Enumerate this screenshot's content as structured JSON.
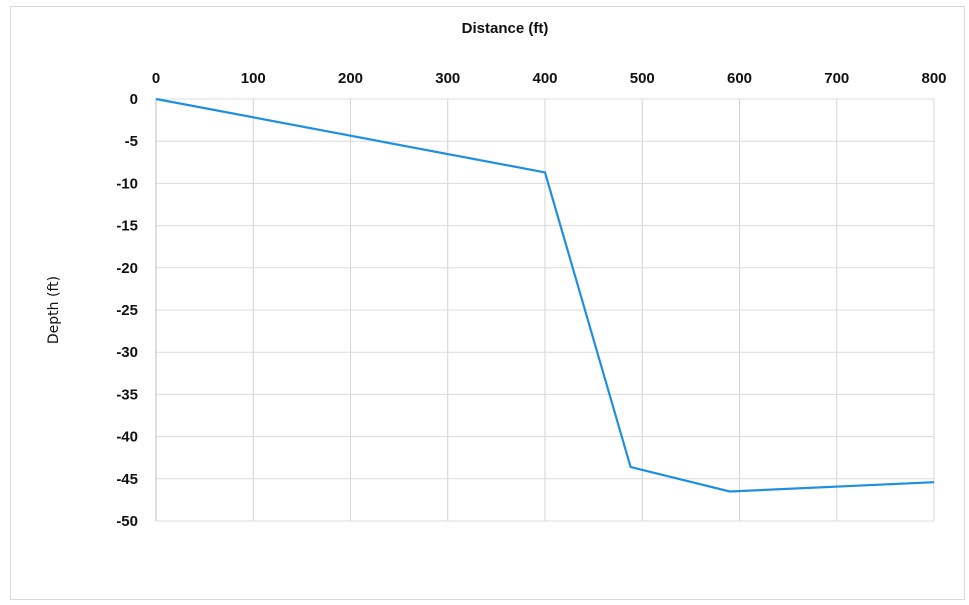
{
  "chart_data": {
    "type": "line",
    "xlabel": "Distance (ft)",
    "ylabel": "Depth (ft)",
    "xlim": [
      0,
      800
    ],
    "ylim": [
      -50,
      0
    ],
    "x_ticks": [
      0,
      100,
      200,
      300,
      400,
      500,
      600,
      700,
      800
    ],
    "y_ticks": [
      0,
      -5,
      -10,
      -15,
      -20,
      -25,
      -30,
      -35,
      -40,
      -45,
      -50
    ],
    "x_axis_position": "top",
    "grid": true,
    "series": [
      {
        "color": "#1f8fe0",
        "x": [
          0,
          400,
          488,
          590,
          800
        ],
        "y": [
          0,
          -8.7,
          -43.6,
          -46.5,
          -45.4
        ]
      }
    ]
  }
}
